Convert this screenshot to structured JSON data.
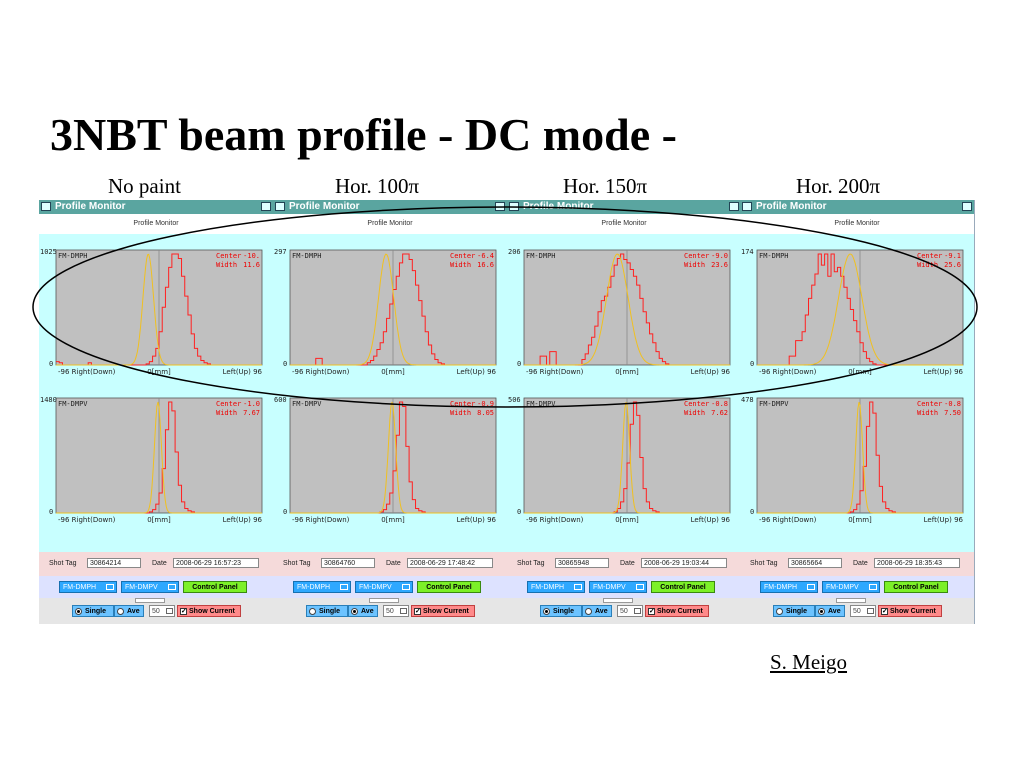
{
  "slide": {
    "title": "3NBT beam profile  - DC mode -",
    "author": "S. Meigo"
  },
  "colors": {
    "curve": "#ff2020",
    "fit": "#f0c020",
    "plot_bg": "#c0c0c0",
    "panel_bg": "#c8ffff"
  },
  "panels": [
    {
      "heading": "No paint",
      "window_title": "Profile Monitor",
      "subheader": "Profile Monitor",
      "axis": {
        "left": "-96 Right(Down)",
        "mid": "0[mm]",
        "right": "Left(Up) 96"
      },
      "plots": [
        {
          "name": "FM-DMPH",
          "ymax": "1025",
          "ymin": "0",
          "center_label": "Center",
          "center": "-10.",
          "width_label": "Width",
          "width": "11.6",
          "fit_center": -10,
          "fit_width": 11.6,
          "histogram": [
            3,
            2,
            0,
            0,
            0,
            0,
            0,
            0,
            0,
            0,
            2,
            0,
            0,
            0,
            0,
            0,
            0,
            0,
            0,
            0,
            0,
            0,
            0,
            0,
            0,
            0,
            0,
            0,
            1,
            3,
            8,
            15,
            30,
            52,
            70,
            88,
            100,
            100,
            96,
            80,
            62,
            45,
            28,
            15,
            8,
            4,
            2,
            1,
            0,
            0,
            0,
            0,
            0,
            0,
            0,
            0,
            0,
            0,
            0,
            0,
            0,
            0,
            0,
            0
          ]
        },
        {
          "name": "FM-DMPV",
          "ymax": "1480",
          "ymin": "0",
          "center_label": "Center",
          "center": "-1.0",
          "width_label": "Width",
          "width": "7.67",
          "fit_center": -1,
          "fit_width": 7.67,
          "histogram": [
            0,
            0,
            0,
            0,
            0,
            0,
            0,
            0,
            0,
            0,
            0,
            0,
            0,
            0,
            0,
            0,
            0,
            0,
            0,
            0,
            0,
            0,
            0,
            0,
            0,
            0,
            0,
            0,
            0,
            1,
            3,
            8,
            18,
            40,
            75,
            100,
            92,
            55,
            25,
            10,
            4,
            2,
            1,
            0,
            0,
            0,
            0,
            0,
            0,
            0,
            0,
            0,
            0,
            0,
            0,
            0,
            0,
            0,
            0,
            0,
            0,
            0,
            0,
            0
          ]
        }
      ],
      "shot_tag_label": "Shot Tag",
      "shot_tag": "30864214",
      "date_label": "Date",
      "date": "2008-06-29 16:57:23",
      "sel_h": "FM-DMPH",
      "sel_v": "FM-DMPV",
      "control_panel": "Control Panel",
      "single_label": "Single",
      "ave_label": "Ave",
      "selected_mode": "single",
      "count": "50",
      "show_current": "Show Current"
    },
    {
      "heading": "Hor. 100π",
      "window_title": "Profile Monitor",
      "subheader": "Profile Monitor",
      "axis": {
        "left": "-96 Right(Down)",
        "mid": "0[mm]",
        "right": "Left(Up) 96"
      },
      "plots": [
        {
          "name": "FM-DMPH",
          "ymax": "297",
          "ymin": "0",
          "center_label": "Center",
          "center": "-6.4",
          "width_label": "Width",
          "width": "16.6",
          "fit_center": -6.4,
          "fit_width": 16.6,
          "histogram": [
            0,
            0,
            0,
            0,
            0,
            0,
            0,
            0,
            6,
            6,
            0,
            0,
            0,
            0,
            0,
            0,
            0,
            0,
            0,
            0,
            0,
            0,
            0,
            0,
            2,
            4,
            8,
            14,
            20,
            30,
            42,
            55,
            68,
            80,
            92,
            100,
            100,
            95,
            85,
            72,
            58,
            44,
            30,
            18,
            10,
            5,
            2,
            1,
            0,
            0,
            0,
            0,
            0,
            0,
            0,
            0,
            0,
            0,
            0,
            0,
            0,
            0,
            0,
            0
          ]
        },
        {
          "name": "FM-DMPV",
          "ymax": "600",
          "ymin": "0",
          "center_label": "Center",
          "center": "-0.9",
          "width_label": "Width",
          "width": "8.05",
          "fit_center": -0.9,
          "fit_width": 8.05,
          "histogram": [
            0,
            0,
            0,
            0,
            0,
            0,
            0,
            0,
            0,
            0,
            0,
            0,
            0,
            0,
            0,
            0,
            0,
            0,
            0,
            0,
            0,
            0,
            0,
            0,
            0,
            0,
            0,
            0,
            1,
            3,
            8,
            18,
            38,
            70,
            100,
            96,
            60,
            28,
            12,
            4,
            2,
            1,
            0,
            0,
            0,
            0,
            0,
            0,
            0,
            0,
            0,
            0,
            0,
            0,
            0,
            0,
            0,
            0,
            0,
            0,
            0,
            0,
            0,
            0
          ]
        }
      ],
      "shot_tag_label": "Shot Tag",
      "shot_tag": "30864760",
      "date_label": "Date",
      "date": "2008-06-29 17:48:42",
      "sel_h": "FM-DMPH",
      "sel_v": "FM-DMPV",
      "control_panel": "Control Panel",
      "single_label": "Single",
      "ave_label": "Ave",
      "selected_mode": "ave",
      "count": "50",
      "show_current": "Show Current"
    },
    {
      "heading": "Hor. 150π",
      "window_title": "Profile Monitor",
      "subheader": "Profile Monitor",
      "axis": {
        "left": "-96 Right(Down)",
        "mid": "0[mm]",
        "right": "Left(Up) 96"
      },
      "plots": [
        {
          "name": "FM-DMPH",
          "ymax": "206",
          "ymin": "0",
          "center_label": "Center",
          "center": "-9.0",
          "width_label": "Width",
          "width": "23.6",
          "fit_center": -9,
          "fit_width": 23.6,
          "histogram": [
            0,
            0,
            0,
            0,
            0,
            8,
            8,
            0,
            12,
            12,
            0,
            0,
            0,
            0,
            0,
            0,
            0,
            0,
            5,
            10,
            18,
            25,
            35,
            48,
            58,
            62,
            70,
            80,
            90,
            96,
            100,
            95,
            92,
            86,
            80,
            72,
            60,
            48,
            38,
            28,
            20,
            12,
            6,
            3,
            1,
            0,
            0,
            0,
            0,
            0,
            0,
            0,
            0,
            0,
            0,
            0,
            0,
            0,
            0,
            0,
            0,
            0,
            0,
            0
          ]
        },
        {
          "name": "FM-DMPV",
          "ymax": "506",
          "ymin": "0",
          "center_label": "Center",
          "center": "-0.8",
          "width_label": "Width",
          "width": "7.62",
          "fit_center": -0.8,
          "fit_width": 7.62,
          "histogram": [
            0,
            0,
            0,
            0,
            0,
            0,
            0,
            0,
            0,
            0,
            0,
            0,
            0,
            0,
            0,
            0,
            0,
            0,
            0,
            0,
            0,
            0,
            0,
            0,
            0,
            0,
            0,
            0,
            1,
            4,
            10,
            22,
            45,
            80,
            100,
            88,
            50,
            22,
            10,
            4,
            2,
            1,
            0,
            0,
            0,
            0,
            0,
            0,
            0,
            0,
            0,
            0,
            0,
            0,
            0,
            0,
            0,
            0,
            0,
            0,
            0,
            0,
            0,
            0
          ]
        }
      ],
      "shot_tag_label": "Shot Tag",
      "shot_tag": "30865948",
      "date_label": "Date",
      "date": "2008-06-29 19:03:44",
      "sel_h": "FM-DMPH",
      "sel_v": "FM-DMPV",
      "control_panel": "Control Panel",
      "single_label": "Single",
      "ave_label": "Ave",
      "selected_mode": "single",
      "count": "50",
      "show_current": "Show Current"
    },
    {
      "heading": "Hor. 200π",
      "window_title": "Profile Monitor",
      "subheader": "Profile Monitor",
      "axis": {
        "left": "-96 Right(Down)",
        "mid": "0[mm]",
        "right": "Left(Up) 96"
      },
      "plots": [
        {
          "name": "FM-DMPH",
          "ymax": "174",
          "ymin": "0",
          "center_label": "Center",
          "center": "-9.1",
          "width_label": "Width",
          "width": "25.6",
          "fit_center": -9.1,
          "fit_width": 25.6,
          "histogram": [
            0,
            0,
            0,
            0,
            0,
            0,
            0,
            0,
            0,
            0,
            8,
            8,
            22,
            22,
            30,
            45,
            60,
            72,
            82,
            100,
            90,
            100,
            80,
            100,
            84,
            88,
            80,
            70,
            60,
            50,
            40,
            30,
            20,
            12,
            6,
            3,
            1,
            0,
            0,
            0,
            0,
            0,
            0,
            0,
            0,
            0,
            0,
            0,
            0,
            0,
            0,
            0,
            0,
            0,
            0,
            0,
            0,
            0,
            0,
            0,
            0,
            0,
            0,
            0
          ]
        },
        {
          "name": "FM-DMPV",
          "ymax": "478",
          "ymin": "0",
          "center_label": "Center",
          "center": "-0.8",
          "width_label": "Width",
          "width": "7.50",
          "fit_center": -0.8,
          "fit_width": 7.5,
          "histogram": [
            0,
            0,
            0,
            0,
            0,
            0,
            0,
            0,
            0,
            0,
            0,
            0,
            0,
            0,
            0,
            0,
            0,
            0,
            0,
            0,
            0,
            0,
            0,
            0,
            0,
            0,
            0,
            0,
            0,
            1,
            3,
            8,
            20,
            42,
            78,
            100,
            90,
            52,
            24,
            10,
            4,
            2,
            1,
            0,
            0,
            0,
            0,
            0,
            0,
            0,
            0,
            0,
            0,
            0,
            0,
            0,
            0,
            0,
            0,
            0,
            0,
            0,
            0,
            0
          ]
        }
      ],
      "shot_tag_label": "Shot Tag",
      "shot_tag": "30865664",
      "date_label": "Date",
      "date": "2008-06-29 18:35:43",
      "sel_h": "FM-DMPH",
      "sel_v": "FM-DMPV",
      "control_panel": "Control Panel",
      "single_label": "Single",
      "ave_label": "Ave",
      "selected_mode": "ave",
      "count": "50",
      "show_current": "Show Current"
    }
  ]
}
